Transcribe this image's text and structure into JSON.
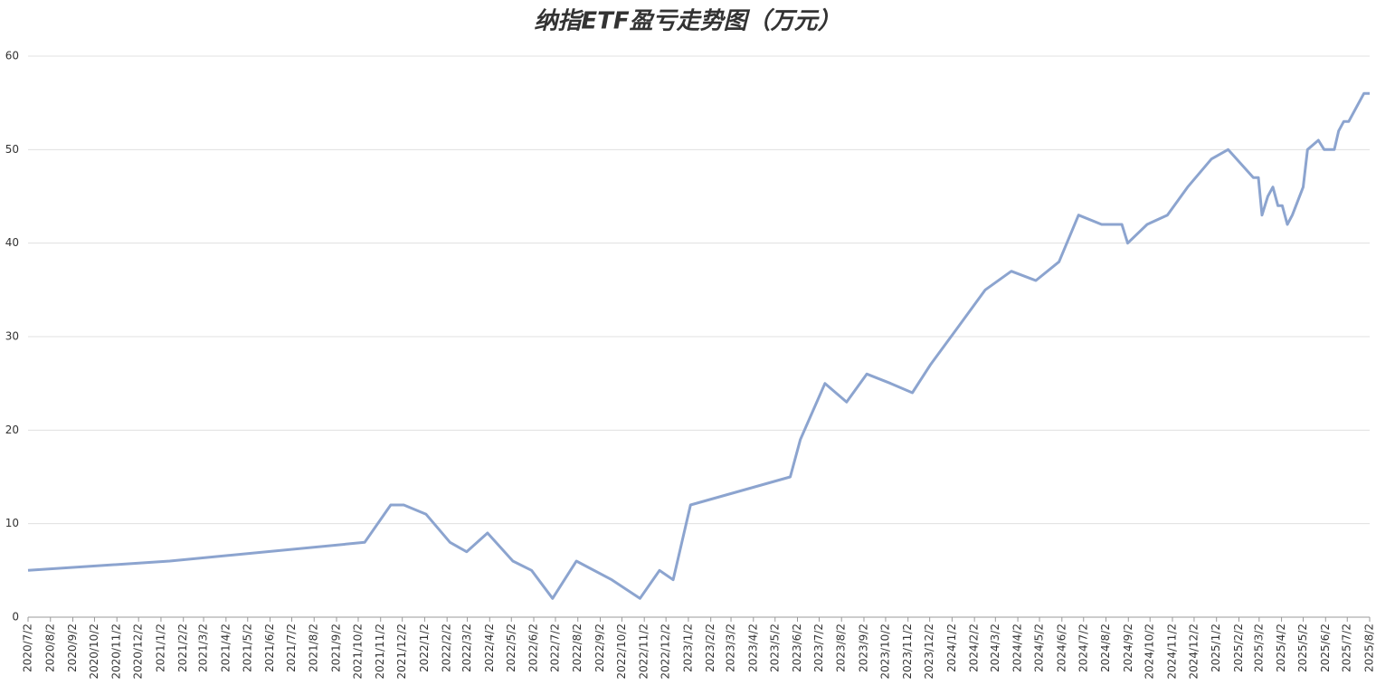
{
  "chart_data": {
    "type": "line",
    "title": "纳指ETF盈亏走势图（万元）",
    "color": "#8ca4cf",
    "grid": true,
    "x": [
      "2020/7/2",
      "2021/1/14",
      "2021/10/11",
      "2021/11/16",
      "2021/12/4",
      "2022/1/4",
      "2022/2/6",
      "2022/3/1",
      "2022/3/30",
      "2022/5/4",
      "2022/5/30",
      "2022/6/28",
      "2022/7/31",
      "2022/9/18",
      "2022/10/27",
      "2022/11/23",
      "2022/12/12",
      "2023/1/5",
      "2023/5/23",
      "2023/6/6",
      "2023/7/10",
      "2023/8/9",
      "2023/9/6",
      "2023/10/9",
      "2023/11/8",
      "2023/12/3",
      "2024/1/10",
      "2024/2/17",
      "2024/3/24",
      "2024/4/27",
      "2024/5/29",
      "2024/6/25",
      "2024/7/27",
      "2024/8/24",
      "2024/9/1",
      "2024/9/28",
      "2024/10/26",
      "2024/11/23",
      "2024/12/26",
      "2025/1/18",
      "2025/2/22",
      "2025/3/1",
      "2025/3/6",
      "2025/3/14",
      "2025/3/21",
      "2025/3/28",
      "2025/4/3",
      "2025/4/10",
      "2025/4/17",
      "2025/5/2",
      "2025/5/8",
      "2025/5/23",
      "2025/5/31",
      "2025/6/14",
      "2025/6/20",
      "2025/6/27",
      "2025/7/4",
      "2025/7/25",
      "2025/8/2"
    ],
    "values": [
      5,
      6,
      8,
      12,
      12,
      11,
      8,
      7,
      9,
      6,
      5,
      2,
      6,
      4,
      2,
      5,
      4,
      12,
      15,
      19,
      25,
      23,
      26,
      25,
      24,
      27,
      31,
      35,
      37,
      36,
      38,
      43,
      42,
      42,
      40,
      42,
      43,
      46,
      49,
      50,
      47,
      47,
      43,
      45,
      46,
      44,
      44,
      42,
      43,
      46,
      50,
      51,
      50,
      50,
      52,
      53,
      53,
      56,
      56
    ],
    "xlim": [
      "2020/7/2",
      "2025/8/2"
    ],
    "xticks": [
      "2020/7/2",
      "2020/8/2",
      "2020/9/2",
      "2020/10/2",
      "2020/11/2",
      "2020/12/2",
      "2021/1/2",
      "2021/2/2",
      "2021/3/2",
      "2021/4/2",
      "2021/5/2",
      "2021/6/2",
      "2021/7/2",
      "2021/8/2",
      "2021/9/2",
      "2021/10/2",
      "2021/11/2",
      "2021/12/2",
      "2022/1/2",
      "2022/2/2",
      "2022/3/2",
      "2022/4/2",
      "2022/5/2",
      "2022/6/2",
      "2022/7/2",
      "2022/8/2",
      "2022/9/2",
      "2022/10/2",
      "2022/11/2",
      "2022/12/2",
      "2023/1/2",
      "2023/2/2",
      "2023/3/2",
      "2023/4/2",
      "2023/5/2",
      "2023/6/2",
      "2023/7/2",
      "2023/8/2",
      "2023/9/2",
      "2023/10/2",
      "2023/11/2",
      "2023/12/2",
      "2024/1/2",
      "2024/2/2",
      "2024/3/2",
      "2024/4/2",
      "2024/5/2",
      "2024/6/2",
      "2024/7/2",
      "2024/8/2",
      "2024/9/2",
      "2024/10/2",
      "2024/11/2",
      "2024/12/2",
      "2025/1/2",
      "2025/2/2",
      "2025/3/2",
      "2025/4/2",
      "2025/5/2",
      "2025/6/2",
      "2025/7/2",
      "2025/8/2"
    ],
    "ylim": [
      0,
      60
    ],
    "yticks": [
      0,
      10,
      20,
      30,
      40,
      50,
      60
    ]
  }
}
